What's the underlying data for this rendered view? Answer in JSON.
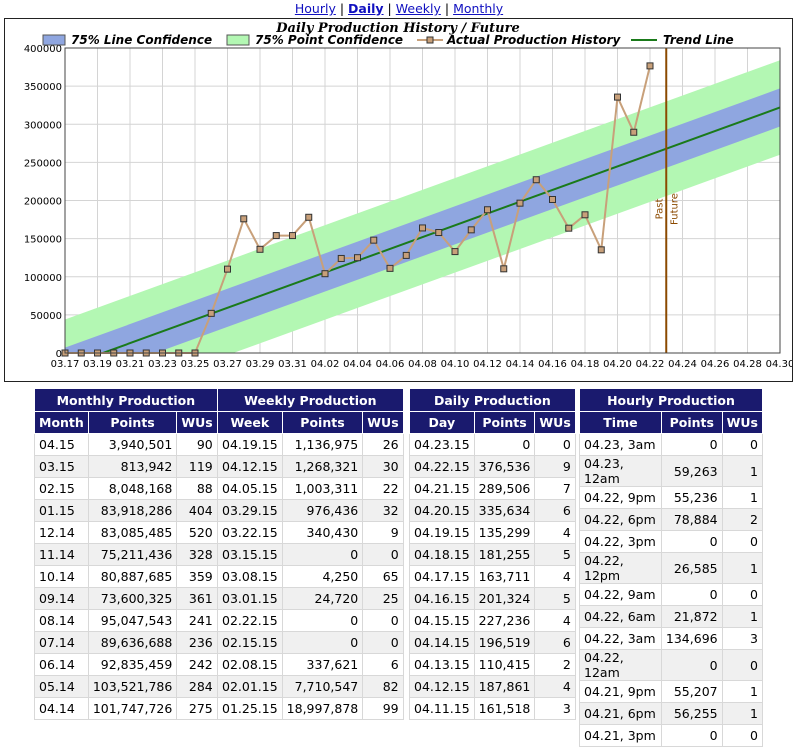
{
  "nav": {
    "hourly": "Hourly",
    "daily": "Daily",
    "weekly": "Weekly",
    "monthly": "Monthly",
    "sep": "|"
  },
  "chart_data": {
    "type": "line",
    "title": "Daily Production History / Future",
    "legend": {
      "placement": "top",
      "entries": [
        "75% Line Confidence",
        "75% Point Confidence",
        "Actual Production History",
        "Trend Line"
      ]
    },
    "colors": {
      "line_confidence": "#8fa6e0",
      "point_confidence": "#b3f7b3",
      "actual": "#c8a07a",
      "trend": "#1a7a1a",
      "divider": "#8b4a00"
    },
    "x_ticks": [
      "03.17",
      "03.19",
      "03.21",
      "03.23",
      "03.25",
      "03.27",
      "03.29",
      "03.31",
      "04.02",
      "04.04",
      "04.06",
      "04.08",
      "04.10",
      "04.12",
      "04.14",
      "04.16",
      "04.18",
      "04.20",
      "04.22",
      "04.24",
      "04.26",
      "04.28",
      "04.30"
    ],
    "y_ticks": [
      "0",
      "50000",
      "100000",
      "150000",
      "200000",
      "250000",
      "300000",
      "350000",
      "400000"
    ],
    "ylim": [
      0,
      400000
    ],
    "xlim": [
      "03.17",
      "04.30"
    ],
    "grid": true,
    "series": [
      {
        "name": "Actual Production History",
        "points": [
          [
            "03.17",
            0
          ],
          [
            "03.18",
            0
          ],
          [
            "03.19",
            0
          ],
          [
            "03.20",
            0
          ],
          [
            "03.21",
            0
          ],
          [
            "03.22",
            0
          ],
          [
            "03.23",
            0
          ],
          [
            "03.24",
            0
          ],
          [
            "03.25",
            0
          ],
          [
            "03.26",
            52000
          ],
          [
            "03.27",
            110000
          ],
          [
            "03.28",
            176000
          ],
          [
            "03.29",
            136000
          ],
          [
            "03.30",
            154000
          ],
          [
            "03.31",
            154000
          ],
          [
            "04.01",
            178000
          ],
          [
            "04.02",
            104000
          ],
          [
            "04.03",
            124000
          ],
          [
            "04.04",
            125000
          ],
          [
            "04.05",
            148000
          ],
          [
            "04.06",
            111000
          ],
          [
            "04.07",
            128000
          ],
          [
            "04.08",
            164000
          ],
          [
            "04.09",
            158000
          ],
          [
            "04.10",
            133000
          ],
          [
            "04.11",
            161518
          ],
          [
            "04.12",
            187861
          ],
          [
            "04.13",
            110415
          ],
          [
            "04.14",
            196519
          ],
          [
            "04.15",
            227236
          ],
          [
            "04.16",
            201324
          ],
          [
            "04.17",
            163711
          ],
          [
            "04.18",
            181255
          ],
          [
            "04.19",
            135299
          ],
          [
            "04.20",
            335634
          ],
          [
            "04.21",
            289506
          ],
          [
            "04.22",
            376536
          ]
        ]
      },
      {
        "name": "Trend Line",
        "start": [
          "03.17",
          -18000
        ],
        "end": [
          "04.30",
          322000
        ]
      },
      {
        "name": "75% Line Confidence",
        "half_width": 25000
      },
      {
        "name": "75% Point Confidence",
        "half_width": 62000
      }
    ],
    "annotations": [
      {
        "text": "Past",
        "x": "04.23"
      },
      {
        "text": "Future",
        "x": "04.23"
      }
    ]
  },
  "tables": {
    "monthly": {
      "caption": "Monthly Production",
      "headers": [
        "Month",
        "Points",
        "WUs"
      ],
      "rows": [
        [
          "04.15",
          "3,940,501",
          "90"
        ],
        [
          "03.15",
          "813,942",
          "119"
        ],
        [
          "02.15",
          "8,048,168",
          "88"
        ],
        [
          "01.15",
          "83,918,286",
          "404"
        ],
        [
          "12.14",
          "83,085,485",
          "520"
        ],
        [
          "11.14",
          "75,211,436",
          "328"
        ],
        [
          "10.14",
          "80,887,685",
          "359"
        ],
        [
          "09.14",
          "73,600,325",
          "361"
        ],
        [
          "08.14",
          "95,047,543",
          "241"
        ],
        [
          "07.14",
          "89,636,688",
          "236"
        ],
        [
          "06.14",
          "92,835,459",
          "242"
        ],
        [
          "05.14",
          "103,521,786",
          "284"
        ],
        [
          "04.14",
          "101,747,726",
          "275"
        ]
      ]
    },
    "weekly": {
      "caption": "Weekly Production",
      "headers": [
        "Week",
        "Points",
        "WUs"
      ],
      "rows": [
        [
          "04.19.15",
          "1,136,975",
          "26"
        ],
        [
          "04.12.15",
          "1,268,321",
          "30"
        ],
        [
          "04.05.15",
          "1,003,311",
          "22"
        ],
        [
          "03.29.15",
          "976,436",
          "32"
        ],
        [
          "03.22.15",
          "340,430",
          "9"
        ],
        [
          "03.15.15",
          "0",
          "0"
        ],
        [
          "03.08.15",
          "4,250",
          "65"
        ],
        [
          "03.01.15",
          "24,720",
          "25"
        ],
        [
          "02.22.15",
          "0",
          "0"
        ],
        [
          "02.15.15",
          "0",
          "0"
        ],
        [
          "02.08.15",
          "337,621",
          "6"
        ],
        [
          "02.01.15",
          "7,710,547",
          "82"
        ],
        [
          "01.25.15",
          "18,997,878",
          "99"
        ]
      ]
    },
    "daily": {
      "caption": "Daily Production",
      "headers": [
        "Day",
        "Points",
        "WUs"
      ],
      "rows": [
        [
          "04.23.15",
          "0",
          "0"
        ],
        [
          "04.22.15",
          "376,536",
          "9"
        ],
        [
          "04.21.15",
          "289,506",
          "7"
        ],
        [
          "04.20.15",
          "335,634",
          "6"
        ],
        [
          "04.19.15",
          "135,299",
          "4"
        ],
        [
          "04.18.15",
          "181,255",
          "5"
        ],
        [
          "04.17.15",
          "163,711",
          "4"
        ],
        [
          "04.16.15",
          "201,324",
          "5"
        ],
        [
          "04.15.15",
          "227,236",
          "4"
        ],
        [
          "04.14.15",
          "196,519",
          "6"
        ],
        [
          "04.13.15",
          "110,415",
          "2"
        ],
        [
          "04.12.15",
          "187,861",
          "4"
        ],
        [
          "04.11.15",
          "161,518",
          "3"
        ]
      ]
    },
    "hourly": {
      "caption": "Hourly Production",
      "headers": [
        "Time",
        "Points",
        "WUs"
      ],
      "rows": [
        [
          "04.23, 3am",
          "0",
          "0"
        ],
        [
          "04.23, 12am",
          "59,263",
          "1"
        ],
        [
          "04.22, 9pm",
          "55,236",
          "1"
        ],
        [
          "04.22, 6pm",
          "78,884",
          "2"
        ],
        [
          "04.22, 3pm",
          "0",
          "0"
        ],
        [
          "04.22, 12pm",
          "26,585",
          "1"
        ],
        [
          "04.22, 9am",
          "0",
          "0"
        ],
        [
          "04.22, 6am",
          "21,872",
          "1"
        ],
        [
          "04.22, 3am",
          "134,696",
          "3"
        ],
        [
          "04.22, 12am",
          "0",
          "0"
        ],
        [
          "04.21, 9pm",
          "55,207",
          "1"
        ],
        [
          "04.21, 6pm",
          "56,255",
          "1"
        ],
        [
          "04.21, 3pm",
          "0",
          "0"
        ]
      ]
    }
  }
}
